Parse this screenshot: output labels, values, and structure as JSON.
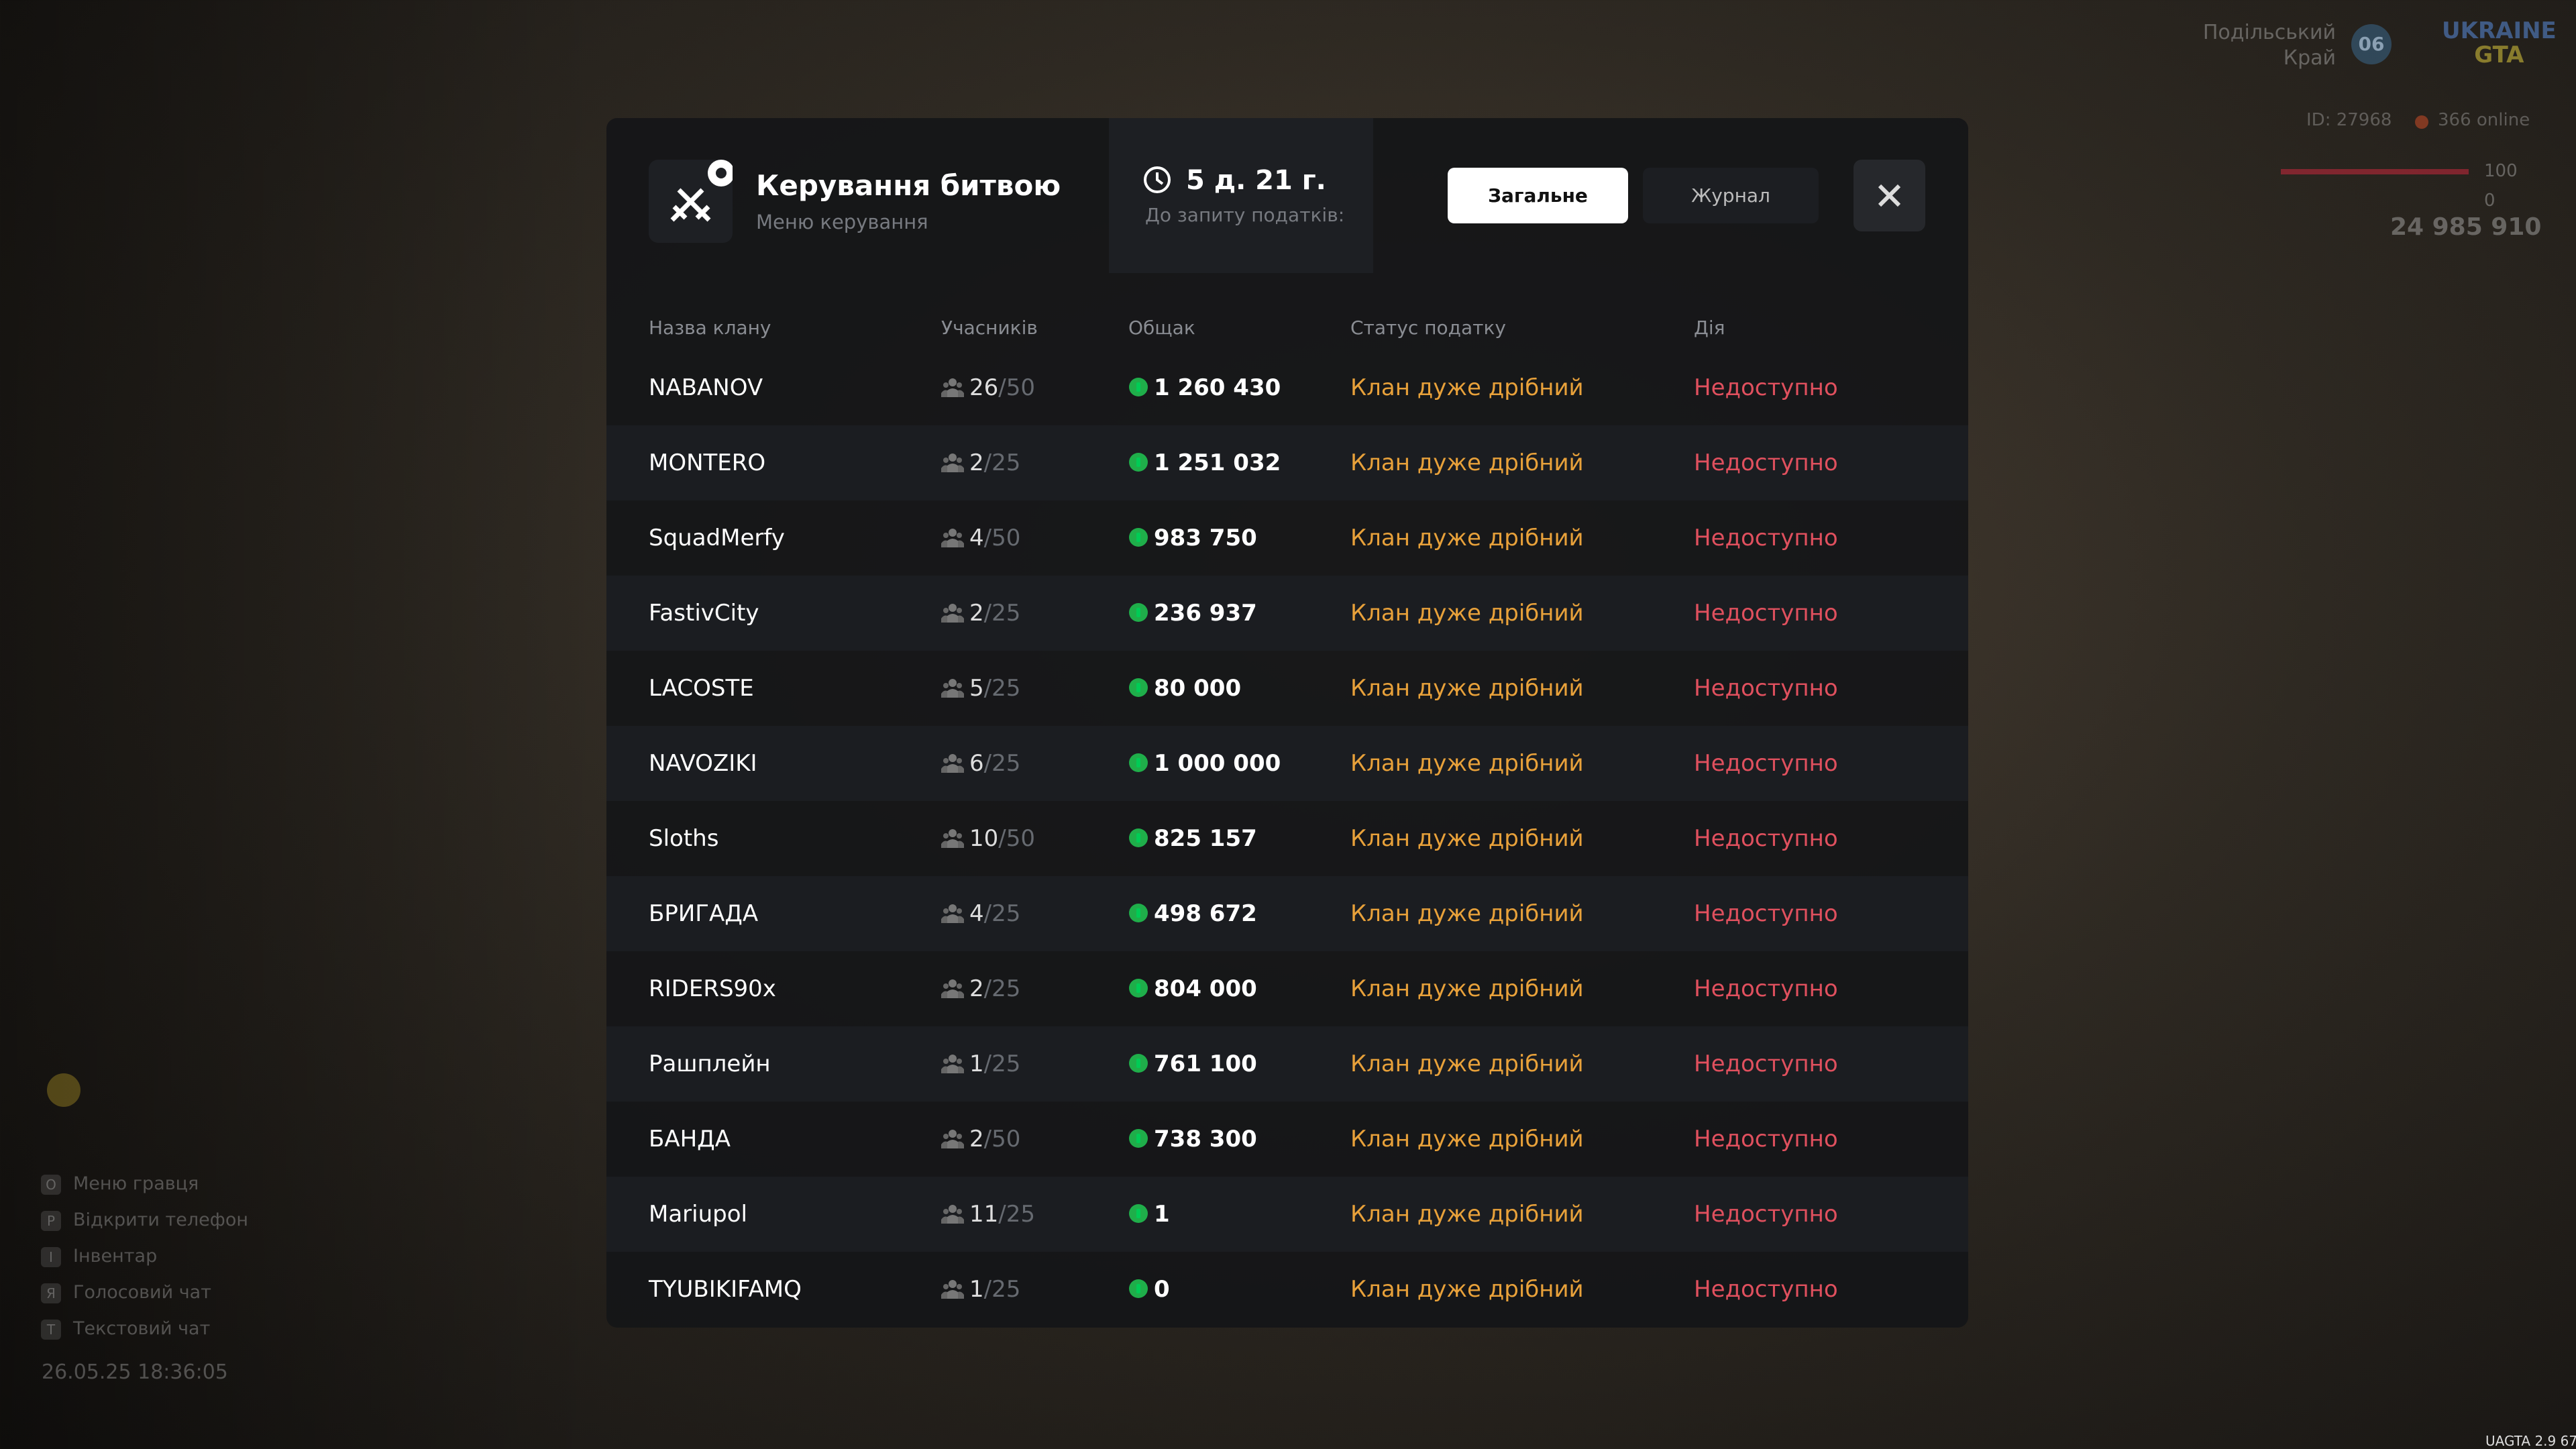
{
  "header": {
    "title": "Керування битвою",
    "subtitle": "Меню керування",
    "timer": "5 д. 21 г.",
    "timer_caption": "До запиту податків:",
    "tabs": [
      "Загальне",
      "Журнал"
    ]
  },
  "table": {
    "columns": [
      "Назва клану",
      "Учасників",
      "Общак",
      "Статус податку",
      "Дія"
    ],
    "rows": [
      {
        "name": "NABANOV",
        "members": "26",
        "limit": "/50",
        "money": "1 260 430",
        "status": "Клан дуже дрібний",
        "action": "Недоступно"
      },
      {
        "name": "MONTERO",
        "members": "2",
        "limit": "/25",
        "money": "1 251 032",
        "status": "Клан дуже дрібний",
        "action": "Недоступно"
      },
      {
        "name": "SquadMerfy",
        "members": "4",
        "limit": "/50",
        "money": "983 750",
        "status": "Клан дуже дрібний",
        "action": "Недоступно"
      },
      {
        "name": "FastivCity",
        "members": "2",
        "limit": "/25",
        "money": "236 937",
        "status": "Клан дуже дрібний",
        "action": "Недоступно"
      },
      {
        "name": "LACOSTE",
        "members": "5",
        "limit": "/25",
        "money": "80 000",
        "status": "Клан дуже дрібний",
        "action": "Недоступно"
      },
      {
        "name": "NAVOZIKI",
        "members": "6",
        "limit": "/25",
        "money": "1 000 000",
        "status": "Клан дуже дрібний",
        "action": "Недоступно"
      },
      {
        "name": "Sloths",
        "members": "10",
        "limit": "/50",
        "money": "825 157",
        "status": "Клан дуже дрібний",
        "action": "Недоступно"
      },
      {
        "name": "БРИГАДА",
        "members": "4",
        "limit": "/25",
        "money": "498 672",
        "status": "Клан дуже дрібний",
        "action": "Недоступно"
      },
      {
        "name": "RIDERS90x",
        "members": "2",
        "limit": "/25",
        "money": "804 000",
        "status": "Клан дуже дрібний",
        "action": "Недоступно"
      },
      {
        "name": "Рашплейн",
        "members": "1",
        "limit": "/25",
        "money": "761 100",
        "status": "Клан дуже дрібний",
        "action": "Недоступно"
      },
      {
        "name": "БАНДА",
        "members": "2",
        "limit": "/50",
        "money": "738 300",
        "status": "Клан дуже дрібний",
        "action": "Недоступно"
      },
      {
        "name": "Mariupol",
        "members": "11",
        "limit": "/25",
        "money": "1",
        "status": "Клан дуже дрібний",
        "action": "Недоступно"
      },
      {
        "name": "TYUBIKIFAMQ",
        "members": "1",
        "limit": "/25",
        "money": "0",
        "status": "Клан дуже дрібний",
        "action": "Недоступно"
      }
    ]
  },
  "hud": {
    "region": [
      "Подільський",
      "Край"
    ],
    "region_code": "06",
    "logo": [
      "UKRAINE",
      "GTA"
    ],
    "player_id": "ID: 27968",
    "online": "366 online",
    "health": "100",
    "armor": "0",
    "cash": "24 985 910",
    "hints": [
      {
        "key": "O",
        "label": "Меню гравця"
      },
      {
        "key": "P",
        "label": "Відкрити телефон"
      },
      {
        "key": "I",
        "label": "Інвентар"
      },
      {
        "key": "Я",
        "label": "Голосовий чат"
      },
      {
        "key": "T",
        "label": "Текстовий чат"
      }
    ],
    "datetime": "26.05.25 18:36:05",
    "version": "UAGTA 2.9",
    "fps": "67"
  }
}
